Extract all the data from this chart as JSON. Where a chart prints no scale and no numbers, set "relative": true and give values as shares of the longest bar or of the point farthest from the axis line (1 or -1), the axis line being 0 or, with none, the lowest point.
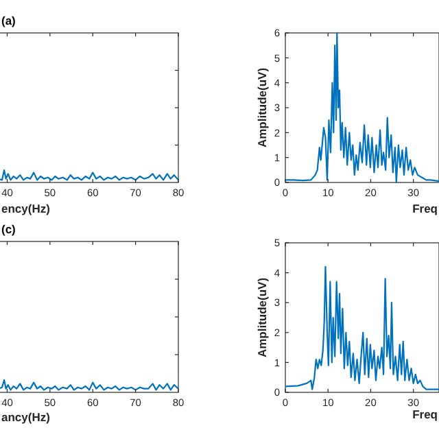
{
  "chart_data": [
    {
      "type": "line",
      "title": "(a)",
      "xlabel": "ency(Hz)",
      "relative": true,
      "tick_labels": "x",
      "xlim": [
        38,
        80
      ],
      "xticks": [
        40,
        50,
        60,
        70,
        80
      ],
      "grid": false,
      "marker": "none",
      "line_style": "solid",
      "series": [
        {
          "color": "#0072bd",
          "x": [
            38,
            38.8,
            39.3,
            39.7,
            40.2,
            40.8,
            41.5,
            42.2,
            43,
            43.8,
            44.6,
            45.4,
            46.2,
            47,
            47.8,
            48.6,
            49.5,
            50.4,
            51.2,
            52,
            53,
            54,
            54.8,
            55.6,
            56.5,
            57.4,
            58.3,
            59.2,
            60,
            60.8,
            61.7,
            62.6,
            63.5,
            64.4,
            65.3,
            66.2,
            67.1,
            68,
            69,
            70,
            71,
            72,
            73,
            74,
            74.8,
            75.6,
            76.5,
            77.4,
            78.2,
            79,
            80
          ],
          "values": [
            0.3,
            0.2,
            1,
            0.3,
            0.7,
            0.2,
            0.5,
            0.3,
            0.6,
            0.2,
            0.4,
            0.3,
            0.8,
            0.2,
            0.5,
            0.3,
            0.4,
            0.2,
            0.5,
            0.3,
            0.4,
            0.2,
            0.6,
            0.3,
            0.4,
            0.2,
            0.5,
            0.3,
            0.8,
            0.3,
            0.5,
            0.2,
            0.4,
            0.3,
            0.5,
            0.2,
            0.4,
            0.3,
            0.4,
            0.2,
            0.5,
            0.3,
            0.4,
            0.7,
            0.3,
            0.6,
            0.2,
            0.7,
            0.3,
            0.6,
            0.2
          ]
        }
      ]
    },
    {
      "type": "line",
      "xlabel": "Freq",
      "ylabel": "Amplitude(uV)",
      "xlim": [
        0,
        36
      ],
      "xticks": [
        0,
        10,
        20,
        30
      ],
      "ylim": [
        0,
        6
      ],
      "yticks": [
        0,
        1,
        2,
        3,
        4,
        5,
        6
      ],
      "grid": false,
      "marker": "none",
      "line_style": "solid",
      "series": [
        {
          "color": "#0072bd",
          "x": [
            0,
            2,
            4,
            6,
            7,
            7.5,
            8,
            8.3,
            9,
            9.4,
            9.8,
            10.2,
            10.6,
            11,
            11.3,
            11.6,
            11.9,
            12.1,
            12.4,
            12.7,
            13,
            13.3,
            13.7,
            14.1,
            14.5,
            15,
            15.4,
            15.8,
            16.2,
            16.6,
            17,
            17.5,
            18,
            18.5,
            19,
            19.4,
            19.9,
            20.3,
            20.8,
            21.3,
            21.7,
            22.2,
            22.6,
            23,
            23.5,
            23.9,
            24.3,
            24.8,
            25.2,
            25.7,
            26,
            26.5,
            26.9,
            27.4,
            27.8,
            28.3,
            28.8,
            29.3,
            29.8,
            30.3,
            31,
            32,
            33,
            34,
            36
          ],
          "values": [
            0.1,
            0.1,
            0.08,
            0.1,
            0.3,
            0.5,
            1.4,
            0.9,
            2.2,
            1.8,
            0.1,
            2.5,
            1.2,
            4.0,
            2.0,
            5.5,
            2.5,
            6.0,
            3.0,
            3.7,
            1.3,
            2.4,
            1.0,
            2.2,
            0.7,
            2.0,
            0.9,
            1.5,
            0.3,
            1.1,
            0.5,
            1.6,
            0.8,
            2.3,
            0.7,
            1.9,
            0.6,
            1.8,
            0.4,
            1.5,
            0.6,
            2.1,
            0.7,
            1.2,
            0.5,
            2.6,
            1.0,
            1.9,
            0.4,
            1.4,
            0.0,
            1.5,
            0.6,
            1.3,
            0.3,
            1.4,
            0.5,
            0.9,
            0.3,
            0.6,
            0.3,
            0.2,
            0.1,
            0.1,
            0.05
          ]
        }
      ]
    },
    {
      "type": "line",
      "title": "(c)",
      "xlabel": "ancy(Hz)",
      "relative": true,
      "tick_labels": "x",
      "xlim": [
        38,
        80
      ],
      "xticks": [
        40,
        50,
        60,
        70,
        80
      ],
      "grid": false,
      "marker": "none",
      "line_style": "solid",
      "series": [
        {
          "color": "#0072bd",
          "x": [
            38,
            38.8,
            39.3,
            39.7,
            40.2,
            40.8,
            41.5,
            42.2,
            43,
            43.8,
            44.6,
            45.4,
            46.2,
            47,
            47.8,
            48.6,
            49.5,
            50.4,
            51.2,
            52,
            53,
            54,
            54.8,
            55.6,
            56.5,
            57.4,
            58.3,
            59.2,
            60,
            60.8,
            61.7,
            62.6,
            63.5,
            64.4,
            65.3,
            66.2,
            67.1,
            68,
            69,
            70,
            71,
            72,
            73,
            74,
            74.8,
            75.6,
            76.5,
            77.4,
            78.2,
            79,
            80
          ],
          "values": [
            0.3,
            0.4,
            1,
            0.3,
            0.6,
            0.2,
            0.5,
            0.3,
            0.7,
            0.2,
            0.4,
            0.3,
            0.8,
            0.3,
            0.5,
            0.2,
            0.4,
            0.3,
            0.5,
            0.2,
            0.4,
            0.3,
            0.6,
            0.2,
            0.4,
            0.3,
            0.5,
            0.2,
            0.8,
            0.3,
            0.6,
            0.2,
            0.4,
            0.3,
            0.5,
            0.2,
            0.4,
            0.3,
            0.4,
            0.2,
            0.4,
            0.3,
            0.3,
            0.7,
            0.2,
            0.6,
            0.3,
            0.7,
            0.2,
            0.6,
            0.3
          ]
        }
      ]
    },
    {
      "type": "line",
      "xlabel": "Freq",
      "ylabel": "Amplitude(uV)",
      "xlim": [
        0,
        36
      ],
      "xticks": [
        0,
        10,
        20,
        30
      ],
      "ylim": [
        0,
        5
      ],
      "yticks": [
        0,
        1,
        2,
        3,
        4,
        5
      ],
      "grid": false,
      "marker": "none",
      "line_style": "solid",
      "series": [
        {
          "color": "#0072bd",
          "x": [
            0,
            3,
            5,
            6,
            6.3,
            6.8,
            7.2,
            7.6,
            8,
            8.4,
            8.8,
            9.1,
            9.4,
            9.8,
            10.1,
            10.5,
            10.9,
            11.2,
            11.6,
            12,
            12.4,
            12.7,
            13,
            13.4,
            13.8,
            14.2,
            14.6,
            15,
            15.4,
            15.9,
            16.3,
            16.8,
            17.3,
            17.8,
            18.2,
            18.6,
            19.1,
            19.5,
            19.9,
            20.3,
            20.8,
            21.2,
            21.7,
            22.1,
            22.6,
            23,
            23.4,
            23.8,
            24.2,
            24.6,
            24.9,
            25.3,
            25.8,
            26.3,
            26.8,
            27.2,
            27.6,
            28,
            28.5,
            29,
            29.5,
            30,
            30.5,
            31,
            31.6,
            32.2,
            33,
            34,
            36
          ],
          "values": [
            0.2,
            0.22,
            0.3,
            0.4,
            0.1,
            0.5,
            1.1,
            0.8,
            1.1,
            0.9,
            1.4,
            2.3,
            4.2,
            2.0,
            0.9,
            3.7,
            1.0,
            2.5,
            1.2,
            3.7,
            1.8,
            3.3,
            1.3,
            2.8,
            0.8,
            2.0,
            0.9,
            1.7,
            0.5,
            1.3,
            0.4,
            1.1,
            0.3,
            1.3,
            2.0,
            0.6,
            1.8,
            0.5,
            1.6,
            0.8,
            1.4,
            0.4,
            1.2,
            0.8,
            1.5,
            0.6,
            3.8,
            1.2,
            1.9,
            0.8,
            3.0,
            0.6,
            1.2,
            0.4,
            1.6,
            0.6,
            1.7,
            0.4,
            1.1,
            0.4,
            0.8,
            0.3,
            0.6,
            0.3,
            0.4,
            0.2,
            0.1,
            0.1,
            0.1
          ]
        }
      ]
    }
  ]
}
